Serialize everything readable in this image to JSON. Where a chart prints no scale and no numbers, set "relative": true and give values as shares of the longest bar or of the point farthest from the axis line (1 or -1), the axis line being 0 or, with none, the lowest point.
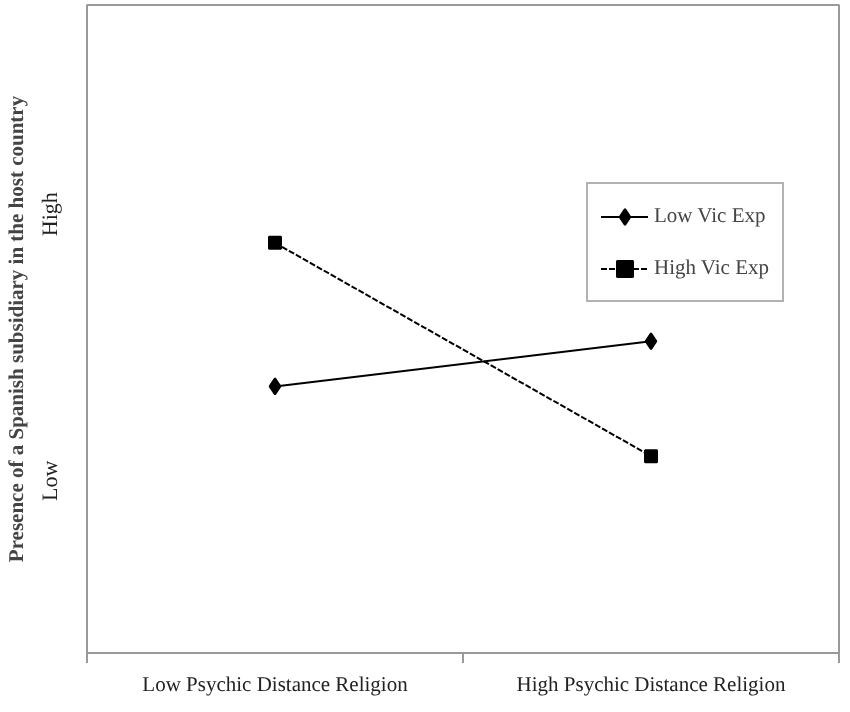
{
  "chart_data": {
    "type": "line",
    "ylabel": "Presence of a Spanish subsidiary in the host country",
    "categories": [
      "Low Psychic Distance Religion",
      "High Psychic Distance Religion"
    ],
    "relative": true,
    "series": [
      {
        "name": "Low Vic Exp",
        "color": "#000000",
        "values": [
          0.65,
          0.76
        ],
        "marker": "diamond",
        "line_style": "solid"
      },
      {
        "name": "High Vic Exp",
        "color": "#000000",
        "values": [
          1,
          0.48
        ],
        "marker": "square",
        "line_style": "dashed"
      }
    ],
    "annotations": [
      "Low",
      "High"
    ],
    "legend": "right",
    "grid": false
  }
}
